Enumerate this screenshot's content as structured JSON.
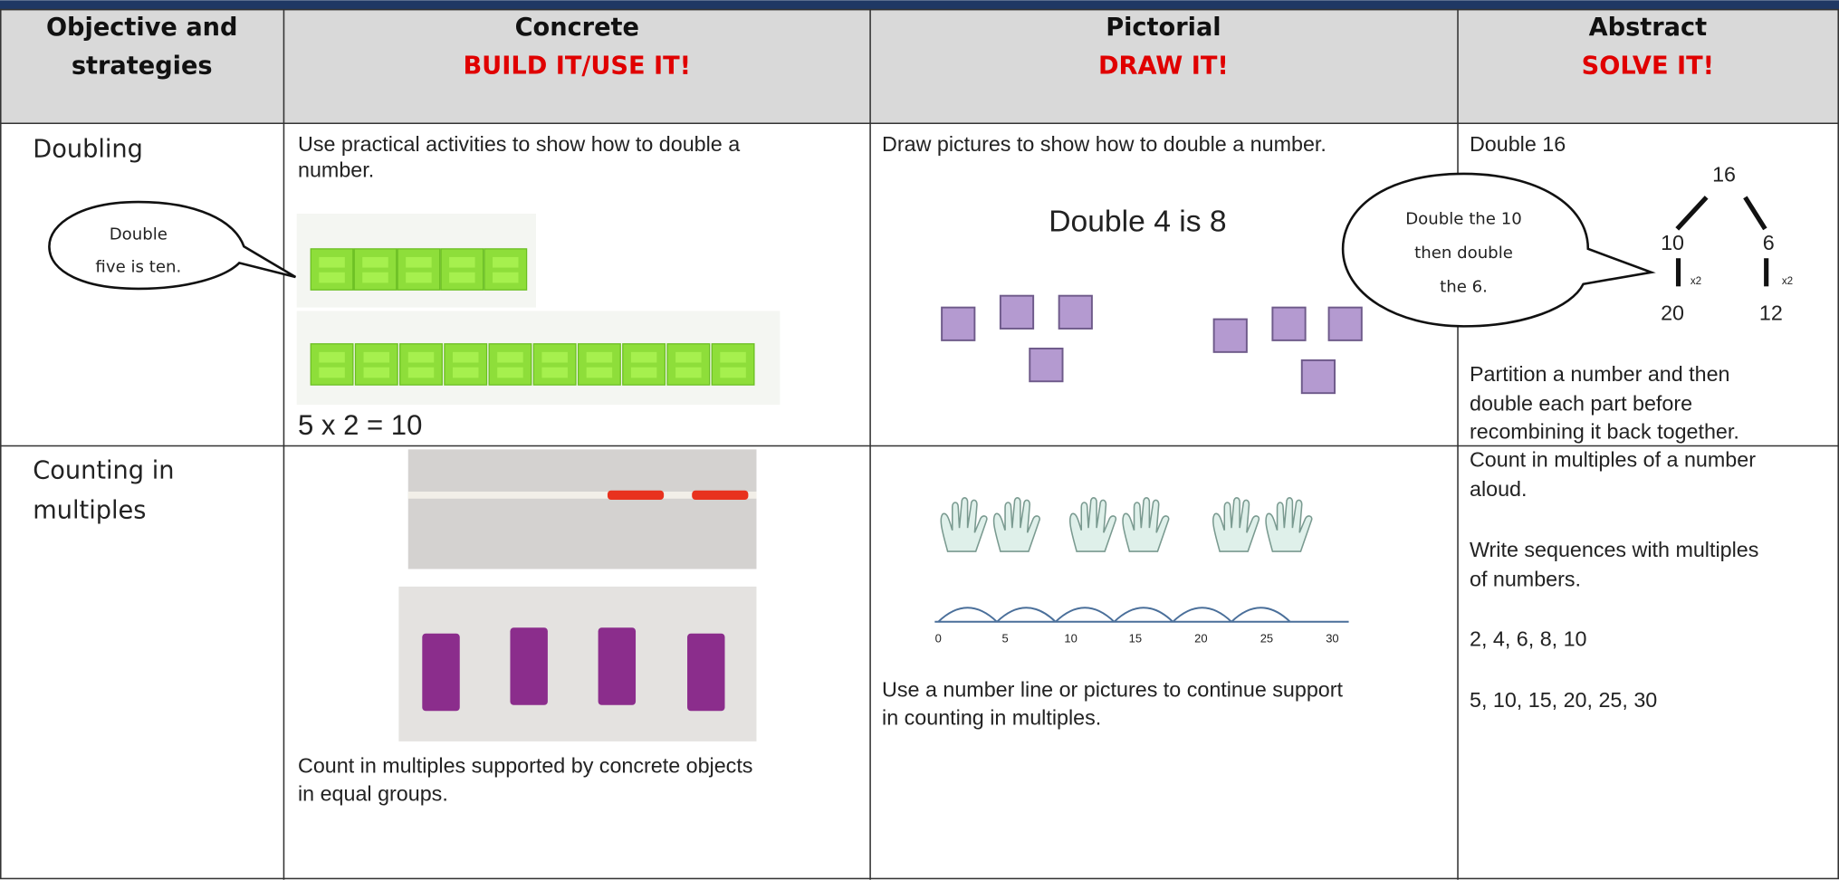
{
  "header": {
    "columns": [
      {
        "title": [
          "Objective and",
          "strategies"
        ]
      },
      {
        "title": [
          "Concrete"
        ],
        "subtitle": "BUILD IT/USE IT!"
      },
      {
        "title": [
          "Pictorial"
        ],
        "subtitle": "DRAW IT!"
      },
      {
        "title": [
          "Abstract"
        ],
        "subtitle": "SOLVE IT!"
      }
    ]
  },
  "rows": [
    {
      "objective": [
        "Doubling"
      ],
      "concrete": {
        "text": [
          "Use practical activities to show how to double a",
          "number."
        ],
        "bubble": [
          "Double",
          "five is ten."
        ],
        "equation": "5 x 2 = 10"
      },
      "pictorial": {
        "text": [
          "Draw pictures to show how to double a number."
        ],
        "caption": "Double 4 is 8"
      },
      "abstract": {
        "heading": "Double 16",
        "bubble": [
          "Double the 10",
          "then double",
          "the 6."
        ],
        "tree": {
          "root": "16",
          "parts": [
            "10",
            "6"
          ],
          "operator": "x2",
          "results": [
            "20",
            "12"
          ]
        },
        "text": [
          "Partition a number and then",
          "double each part before",
          "recombining it back together."
        ]
      }
    },
    {
      "objective": [
        "Counting in",
        "multiples"
      ],
      "concrete": {
        "text": [
          "Count in multiples supported by concrete objects",
          "in equal groups."
        ]
      },
      "pictorial": {
        "number_line": [
          "0",
          "5",
          "10",
          "15",
          "20",
          "25",
          "30"
        ],
        "text": [
          "Use a number line or pictures to continue support",
          "in counting in multiples."
        ]
      },
      "abstract": {
        "paragraphs": [
          [
            "Count in multiples of a number",
            "aloud."
          ],
          [
            "Write sequences with multiples",
            "of numbers."
          ],
          [
            "2, 4, 6, 8, 10"
          ],
          [
            "5, 10, 15, 20, 25, 30"
          ]
        ]
      }
    }
  ]
}
